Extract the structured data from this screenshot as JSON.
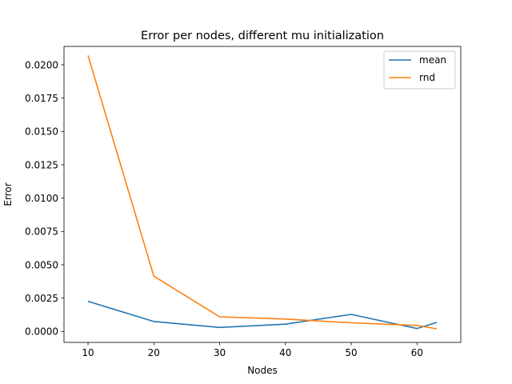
{
  "chart_data": {
    "type": "line",
    "title": "Error per nodes, different mu initialization",
    "xlabel": "Nodes",
    "ylabel": "Error",
    "x": [
      10,
      20,
      30,
      40,
      50,
      60,
      63
    ],
    "xlim": [
      6.35,
      66.65
    ],
    "ylim": [
      -0.00082,
      0.02138
    ],
    "xticks": [
      10,
      20,
      30,
      40,
      50,
      60
    ],
    "yticks": [
      0.0,
      0.0025,
      0.005,
      0.0075,
      0.01,
      0.0125,
      0.015,
      0.0175,
      0.02
    ],
    "ytick_labels": [
      "0.0000",
      "0.0025",
      "0.0050",
      "0.0075",
      "0.0100",
      "0.0125",
      "0.0150",
      "0.0175",
      "0.0200"
    ],
    "grid": false,
    "legend_position": "top-right",
    "series": [
      {
        "name": "mean",
        "color": "#1f77b4",
        "values": [
          0.00226,
          0.00075,
          0.0003,
          0.00055,
          0.00128,
          0.00022,
          0.00068
        ]
      },
      {
        "name": "rnd",
        "color": "#ff7f0e",
        "values": [
          0.0207,
          0.00415,
          0.0011,
          0.00093,
          0.00065,
          0.00045,
          0.0002
        ]
      }
    ]
  }
}
